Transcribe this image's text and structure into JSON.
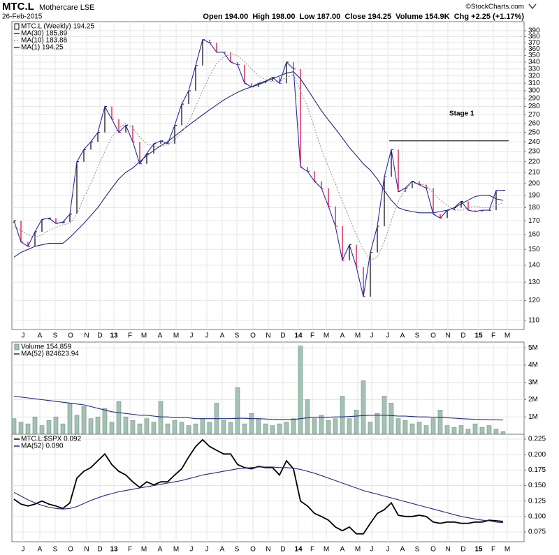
{
  "header": {
    "symbol": "MTC.L",
    "name": "Mothercare LSE",
    "date": "26-Feb-2015",
    "quote": "Open 194.00  High 198.00  Low 187.00  Close 194.25  Volume 154.9K  Chg +2.25 (+1.17%)",
    "credit": "©StockCharts.com"
  },
  "chart_data": [
    {
      "type": "line",
      "log": true,
      "grid": true,
      "legend": "upper-left",
      "annotation": "Stage 1",
      "reference_line": 241,
      "xlim": [
        -0.3,
        73
      ],
      "xticks": [
        {
          "value": 1.3,
          "label": "J"
        },
        {
          "value": 3.7,
          "label": "A"
        },
        {
          "value": 5.9,
          "label": "S"
        },
        {
          "value": 8.1,
          "label": "O"
        },
        {
          "value": 10.4,
          "label": "N"
        },
        {
          "value": 12.3,
          "label": "D"
        },
        {
          "value": 14.3,
          "label": "13"
        },
        {
          "value": 16.6,
          "label": "F"
        },
        {
          "value": 18.6,
          "label": "M"
        },
        {
          "value": 20.9,
          "label": "A"
        },
        {
          "value": 23.2,
          "label": "M"
        },
        {
          "value": 25.4,
          "label": "J"
        },
        {
          "value": 27.6,
          "label": "J"
        },
        {
          "value": 29.8,
          "label": "A"
        },
        {
          "value": 31.9,
          "label": "S"
        },
        {
          "value": 34.2,
          "label": "O"
        },
        {
          "value": 36.4,
          "label": "N"
        },
        {
          "value": 38.5,
          "label": "D"
        },
        {
          "value": 40.7,
          "label": "14"
        },
        {
          "value": 42.7,
          "label": "F"
        },
        {
          "value": 44.7,
          "label": "M"
        },
        {
          "value": 47,
          "label": "A"
        },
        {
          "value": 49.2,
          "label": "M"
        },
        {
          "value": 51.2,
          "label": "J"
        },
        {
          "value": 53.5,
          "label": "J"
        },
        {
          "value": 55.6,
          "label": "A"
        },
        {
          "value": 57.7,
          "label": "S"
        },
        {
          "value": 60,
          "label": "O"
        },
        {
          "value": 62.1,
          "label": "N"
        },
        {
          "value": 64.3,
          "label": "D"
        },
        {
          "value": 66.5,
          "label": "15"
        },
        {
          "value": 68.6,
          "label": "F"
        },
        {
          "value": 70.6,
          "label": "M"
        }
      ],
      "categories": [
        null,
        null,
        null,
        null,
        null,
        null,
        null,
        null,
        null,
        null,
        null,
        null,
        null,
        null,
        null,
        null,
        null,
        null,
        null,
        null,
        null,
        null,
        null,
        null,
        null,
        null,
        null,
        null,
        null,
        null,
        null,
        null,
        null,
        null,
        null,
        null,
        null,
        null,
        null,
        null,
        null,
        null,
        null,
        null,
        null,
        null,
        null,
        null,
        null,
        null,
        null,
        null,
        null,
        null,
        null,
        null,
        null,
        null,
        null,
        null,
        null,
        null,
        null,
        null,
        null,
        null,
        null,
        null,
        null,
        null,
        null
      ],
      "ylim": [
        105.7,
        405.7
      ],
      "yticks": [
        110,
        120,
        130,
        140,
        150,
        160,
        170,
        180,
        190,
        200,
        210,
        220,
        230,
        240,
        250,
        260,
        270,
        280,
        290,
        300,
        310,
        320,
        330,
        340,
        350,
        360,
        370,
        380,
        390
      ],
      "series": [
        {
          "name": "MTC.L (Weekly) 194.25",
          "style": "price-bars",
          "color": "#000000",
          "down_color": "#cc0033",
          "values": [
            170,
            155,
            152,
            162,
            171,
            172,
            168,
            169,
            175,
            220,
            232,
            240,
            250,
            280,
            265,
            250,
            258,
            240,
            218,
            228,
            238,
            241,
            238,
            258,
            283,
            300,
            335,
            375,
            370,
            355,
            355,
            340,
            336,
            310,
            305,
            310,
            313,
            318,
            310,
            340,
            330,
            215,
            211,
            202,
            196,
            181,
            166,
            143,
            153,
            139,
            122,
            148,
            166,
            206,
            232,
            193,
            196,
            202,
            199,
            196,
            175,
            172,
            178,
            180,
            185,
            178,
            177,
            178,
            178,
            194,
            194.25
          ]
        },
        {
          "name": "MA(30) 185.89",
          "style": "solid",
          "color": "#1f2a80",
          "values": [
            145,
            148,
            150,
            152,
            153,
            154,
            154,
            154,
            158,
            163,
            168,
            174,
            180,
            188,
            196,
            204,
            210,
            214,
            220,
            226,
            231,
            236,
            240,
            246,
            252,
            258,
            264,
            270,
            276,
            282,
            288,
            293,
            298,
            302,
            305,
            308,
            312,
            316,
            320,
            324,
            326,
            316,
            302,
            288,
            275,
            264,
            254,
            244,
            234,
            226,
            218,
            212,
            204,
            194,
            186,
            180,
            178,
            177,
            176,
            176,
            176,
            177,
            178,
            180,
            183,
            186,
            189,
            190,
            190,
            187,
            185.89
          ]
        },
        {
          "name": "MA(10) 183.88",
          "style": "dotted",
          "color": "#999999",
          "values": [
            165,
            163,
            160,
            158,
            160,
            163,
            165,
            167,
            168,
            175,
            188,
            200,
            215,
            230,
            245,
            255,
            260,
            255,
            245,
            238,
            235,
            235,
            237,
            242,
            250,
            262,
            280,
            300,
            320,
            338,
            348,
            352,
            350,
            340,
            330,
            320,
            315,
            312,
            312,
            318,
            322,
            300,
            280,
            255,
            232,
            215,
            200,
            185,
            172,
            160,
            150,
            143,
            145,
            155,
            170,
            185,
            195,
            200,
            200,
            198,
            192,
            186,
            182,
            178,
            178,
            180,
            181,
            180,
            180,
            182,
            183.88
          ]
        },
        {
          "name": "MA(1) 194.25",
          "style": "solid",
          "color": "#2a2aa8",
          "values": [
            170,
            155,
            152,
            162,
            171,
            172,
            168,
            169,
            175,
            220,
            232,
            240,
            250,
            280,
            265,
            250,
            258,
            240,
            218,
            228,
            238,
            241,
            238,
            258,
            283,
            300,
            335,
            375,
            370,
            355,
            355,
            340,
            336,
            310,
            305,
            310,
            313,
            318,
            310,
            340,
            330,
            215,
            211,
            202,
            196,
            181,
            166,
            143,
            153,
            139,
            122,
            148,
            166,
            206,
            232,
            193,
            196,
            202,
            199,
            196,
            175,
            172,
            178,
            180,
            185,
            178,
            177,
            178,
            178,
            194,
            194.25
          ]
        }
      ]
    },
    {
      "type": "bar",
      "grid": true,
      "legend": "upper-left",
      "ylim": [
        0,
        5330000
      ],
      "yticks": [
        {
          "value": 1000000,
          "label": "1M"
        },
        {
          "value": 2000000,
          "label": "2M"
        },
        {
          "value": 3000000,
          "label": "3M"
        },
        {
          "value": 4000000,
          "label": "4M"
        },
        {
          "value": 5000000,
          "label": "5M"
        }
      ],
      "series": [
        {
          "name": "Volume 154,859",
          "style": "bars",
          "color": "#a3c2b4",
          "values": [
            900000,
            700000,
            600000,
            1000000,
            500000,
            800000,
            1000000,
            600000,
            1800000,
            1100000,
            1600000,
            900000,
            1000000,
            1500000,
            700000,
            1900000,
            1000000,
            800000,
            600000,
            900000,
            700000,
            1900000,
            600000,
            800000,
            700000,
            500000,
            600000,
            900000,
            700000,
            1800000,
            800000,
            700000,
            2700000,
            600000,
            1200000,
            900000,
            600000,
            500000,
            600000,
            700000,
            900000,
            5100000,
            2000000,
            900000,
            1100000,
            800000,
            900000,
            2200000,
            900000,
            1400000,
            3100000,
            700000,
            1200000,
            2200000,
            1800000,
            900000,
            800000,
            600000,
            700000,
            500000,
            900000,
            1400000,
            500000,
            400000,
            500000,
            300000,
            600000,
            400000,
            500000,
            300000,
            154859
          ]
        },
        {
          "name": "MA(52) 824623.94",
          "style": "solid",
          "color": "#1f2a80",
          "values": [
            2200000,
            2150000,
            2100000,
            2050000,
            2000000,
            1950000,
            1900000,
            1850000,
            1800000,
            1750000,
            1700000,
            1600000,
            1500000,
            1400000,
            1300000,
            1250000,
            1200000,
            1150000,
            1100000,
            1100000,
            1050000,
            1000000,
            1000000,
            950000,
            950000,
            950000,
            900000,
            900000,
            900000,
            900000,
            900000,
            900000,
            920000,
            920000,
            900000,
            900000,
            880000,
            860000,
            850000,
            850000,
            850000,
            900000,
            950000,
            980000,
            980000,
            980000,
            1000000,
            1000000,
            1020000,
            1050000,
            1080000,
            1100000,
            1100000,
            1100000,
            1080000,
            1050000,
            1050000,
            1020000,
            1000000,
            1000000,
            980000,
            980000,
            950000,
            930000,
            900000,
            880000,
            860000,
            850000,
            840000,
            830000,
            824623.94
          ]
        }
      ]
    },
    {
      "type": "line",
      "grid": true,
      "legend": "upper-left",
      "ylim": [
        0.0592,
        0.2329
      ],
      "yticks": [
        0.075,
        {
          "value": 0.1,
          "label": "0.100"
        },
        0.125,
        {
          "value": 0.15,
          "label": "0.150"
        },
        0.175,
        {
          "value": 0.2,
          "label": "0.200"
        },
        0.225
      ],
      "series": [
        {
          "name": "MTC.L:$SPX 0.092",
          "style": "thick",
          "color": "#000000",
          "values": [
            0.128,
            0.12,
            0.117,
            0.12,
            0.125,
            0.12,
            0.117,
            0.113,
            0.122,
            0.162,
            0.173,
            0.179,
            0.19,
            0.201,
            0.184,
            0.173,
            0.167,
            0.156,
            0.147,
            0.156,
            0.151,
            0.156,
            0.156,
            0.167,
            0.177,
            0.196,
            0.213,
            0.224,
            0.213,
            0.207,
            0.201,
            0.201,
            0.184,
            0.179,
            0.177,
            0.181,
            0.179,
            0.179,
            0.167,
            0.19,
            0.177,
            0.125,
            0.117,
            0.105,
            0.1,
            0.094,
            0.083,
            0.077,
            0.083,
            0.072,
            0.072,
            0.089,
            0.105,
            0.111,
            0.122,
            0.102,
            0.1,
            0.1,
            0.102,
            0.1,
            0.091,
            0.089,
            0.091,
            0.091,
            0.089,
            0.089,
            0.091,
            0.091,
            0.094,
            0.093,
            0.092
          ]
        },
        {
          "name": "MA(52) 0.090",
          "style": "solid",
          "color": "#1f2a80",
          "values": [
            0.139,
            0.133,
            0.127,
            0.122,
            0.118,
            0.115,
            0.113,
            0.112,
            0.113,
            0.116,
            0.121,
            0.126,
            0.13,
            0.134,
            0.137,
            0.14,
            0.142,
            0.144,
            0.146,
            0.148,
            0.15,
            0.152,
            0.154,
            0.156,
            0.158,
            0.161,
            0.164,
            0.167,
            0.169,
            0.171,
            0.173,
            0.175,
            0.177,
            0.178,
            0.179,
            0.18,
            0.18,
            0.18,
            0.179,
            0.179,
            0.178,
            0.176,
            0.173,
            0.17,
            0.166,
            0.162,
            0.158,
            0.154,
            0.15,
            0.146,
            0.142,
            0.139,
            0.136,
            0.133,
            0.13,
            0.127,
            0.124,
            0.121,
            0.118,
            0.115,
            0.112,
            0.109,
            0.106,
            0.103,
            0.1,
            0.098,
            0.096,
            0.094,
            0.093,
            0.091,
            0.09
          ]
        }
      ]
    }
  ]
}
